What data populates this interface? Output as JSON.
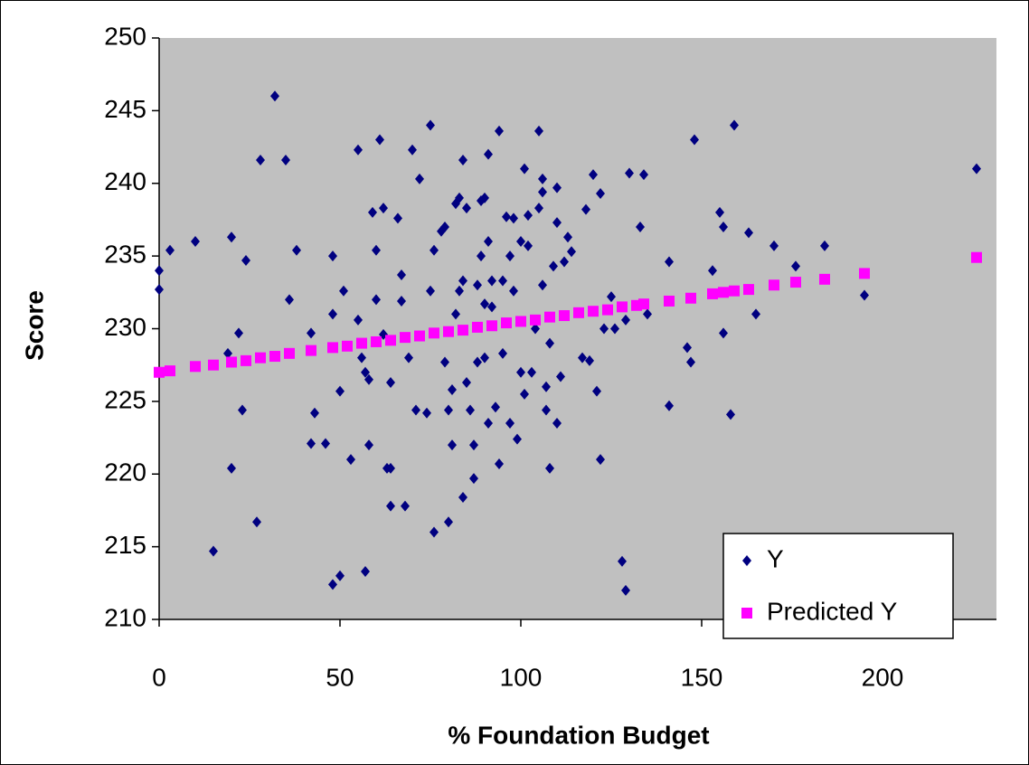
{
  "chart_data": {
    "type": "scatter",
    "x_label": "% Foundation Budget",
    "y_label": "Score",
    "xlim": [
      0,
      231.5
    ],
    "xticks": [
      0,
      50,
      100,
      150,
      200
    ],
    "ylim": [
      210,
      250
    ],
    "yticks": [
      210,
      215,
      220,
      225,
      230,
      235,
      240,
      245,
      250
    ],
    "legend": "lower right",
    "plot_background": "#c0c0c0",
    "series": [
      {
        "name": "Y",
        "color": "#000080",
        "marker": "diamond",
        "x": [
          0,
          0,
          3,
          10,
          15,
          19,
          20,
          20,
          22,
          23,
          24,
          27,
          28,
          32,
          35,
          36,
          38,
          42,
          42,
          43,
          46,
          48,
          48,
          48,
          50,
          50,
          51,
          53,
          55,
          55,
          56,
          57,
          57,
          58,
          58,
          59,
          60,
          60,
          61,
          62,
          62,
          63,
          64,
          64,
          64,
          66,
          67,
          67,
          68,
          69,
          70,
          71,
          72,
          74,
          75,
          75,
          76,
          76,
          78,
          79,
          79,
          80,
          80,
          81,
          81,
          82,
          82,
          83,
          83,
          84,
          84,
          84,
          85,
          85,
          86,
          87,
          87,
          88,
          88,
          89,
          89,
          90,
          90,
          90,
          91,
          91,
          91,
          92,
          92,
          93,
          94,
          94,
          95,
          95,
          96,
          97,
          97,
          98,
          98,
          99,
          100,
          100,
          101,
          101,
          102,
          102,
          103,
          104,
          105,
          105,
          106,
          106,
          106,
          107,
          107,
          108,
          108,
          109,
          110,
          110,
          110,
          111,
          112,
          113,
          114,
          117,
          118,
          119,
          120,
          121,
          122,
          122,
          123,
          125,
          126,
          128,
          129,
          129,
          130,
          133,
          134,
          135,
          141,
          141,
          146,
          147,
          148,
          153,
          155,
          156,
          156,
          158,
          159,
          163,
          165,
          170,
          176,
          184,
          195,
          226
        ],
        "values": [
          234,
          232.7,
          235.4,
          236,
          214.7,
          228.3,
          236.3,
          220.4,
          229.7,
          224.4,
          234.7,
          216.7,
          241.6,
          246,
          241.6,
          232,
          235.4,
          229.7,
          222.1,
          224.2,
          222.1,
          231,
          235,
          212.4,
          213,
          225.7,
          232.6,
          221,
          242.3,
          230.6,
          228,
          213.3,
          227,
          222,
          226.5,
          238,
          232,
          235.4,
          243,
          238.3,
          229.6,
          220.4,
          220.4,
          217.8,
          226.3,
          237.6,
          233.7,
          231.9,
          217.8,
          228,
          242.3,
          224.4,
          240.3,
          224.2,
          244,
          232.6,
          235.4,
          216,
          236.7,
          237,
          227.7,
          216.7,
          224.4,
          225.8,
          222,
          231,
          238.6,
          239,
          232.6,
          233.3,
          241.6,
          218.4,
          226.3,
          238.3,
          224.4,
          222,
          219.7,
          233,
          227.7,
          235,
          238.8,
          231.7,
          228,
          239,
          236,
          242,
          223.5,
          233.3,
          231.5,
          224.6,
          243.6,
          220.7,
          228.3,
          233.3,
          237.7,
          235,
          223.5,
          237.6,
          232.6,
          222.4,
          227,
          236,
          241,
          225.5,
          237.8,
          235.7,
          227,
          230,
          238.3,
          243.6,
          239.4,
          240.3,
          233,
          226,
          224.4,
          220.4,
          229,
          234.3,
          239.7,
          237.3,
          223.5,
          226.7,
          234.6,
          236.3,
          235.3,
          228,
          238.2,
          227.8,
          240.6,
          225.7,
          239.3,
          221,
          230,
          232.2,
          230,
          214,
          212,
          230.6,
          240.7,
          237,
          240.6,
          231,
          234.6,
          224.7,
          228.7,
          227.7,
          243,
          234,
          238,
          237,
          229.7,
          224.1,
          244,
          236.6,
          231,
          235.7,
          234.3,
          235.7,
          232.3,
          241
        ]
      },
      {
        "name": "Predicted Y",
        "color": "#ff00ff",
        "marker": "square",
        "x": [
          0,
          3,
          10,
          15,
          20,
          24,
          28,
          32,
          36,
          42,
          48,
          52,
          56,
          60,
          64,
          68,
          72,
          76,
          80,
          84,
          88,
          92,
          96,
          100,
          104,
          108,
          112,
          116,
          120,
          124,
          128,
          132,
          134,
          141,
          147,
          153,
          156,
          159,
          163,
          170,
          176,
          184,
          195,
          226
        ],
        "values": [
          227.0,
          227.1,
          227.4,
          227.5,
          227.7,
          227.8,
          228.0,
          228.1,
          228.3,
          228.5,
          228.7,
          228.8,
          229.0,
          229.1,
          229.2,
          229.4,
          229.5,
          229.7,
          229.8,
          229.9,
          230.1,
          230.2,
          230.4,
          230.5,
          230.6,
          230.8,
          230.9,
          231.1,
          231.2,
          231.3,
          231.5,
          231.6,
          231.7,
          231.9,
          232.1,
          232.4,
          232.5,
          232.6,
          232.7,
          233.0,
          233.2,
          233.4,
          233.8,
          234.9
        ]
      }
    ]
  }
}
